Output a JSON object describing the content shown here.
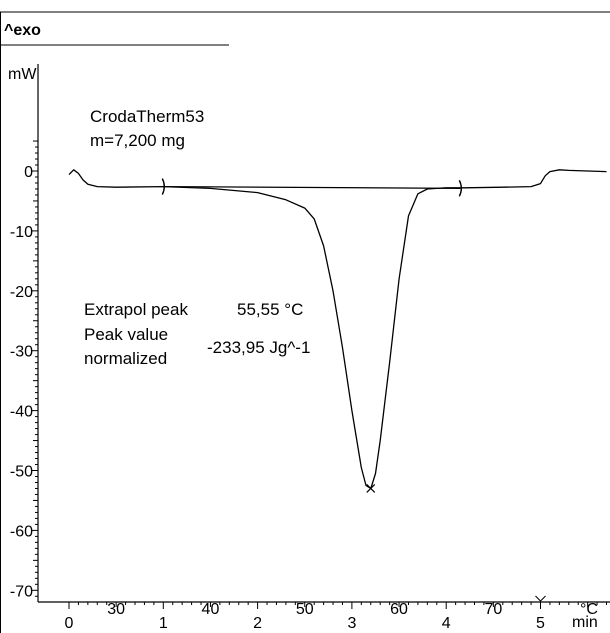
{
  "chart_data": {
    "type": "line",
    "header_label": "^exo",
    "ylabel": "mW",
    "xlabel": "min",
    "temperature_unit": "°C",
    "sample_name": "CrodaTherm53",
    "sample_mass": "m=7,200 mg",
    "xlim": [
      -0.05,
      5.7
    ],
    "ylim": [
      -71.5,
      8.5
    ],
    "x_ticks": [
      0,
      1,
      2,
      3,
      4,
      5
    ],
    "y_ticks": [
      0,
      -10,
      -20,
      -30,
      -40,
      -50,
      -60,
      -70
    ],
    "temperature_ticks": [
      {
        "label": "30",
        "x": 0.5
      },
      {
        "label": "40",
        "x": 1.5
      },
      {
        "label": "50",
        "x": 2.5
      },
      {
        "label": "60",
        "x": 3.5
      },
      {
        "label": "70",
        "x": 4.5
      }
    ],
    "series": [
      {
        "x": [
          0.0,
          0.05,
          0.1,
          0.15,
          0.2,
          0.3,
          0.5,
          1.0,
          1.5,
          2.0,
          2.3,
          2.5,
          2.6,
          2.7,
          2.8,
          2.9,
          3.0,
          3.1,
          3.15,
          3.2,
          3.25,
          3.3,
          3.4,
          3.5,
          3.6,
          3.7,
          3.8,
          3.9,
          4.0,
          4.2,
          4.6,
          4.9,
          5.0,
          5.05,
          5.1,
          5.2,
          5.3,
          5.5,
          5.7
        ],
        "y": [
          -0.6,
          0.2,
          -0.4,
          -1.5,
          -2.2,
          -2.6,
          -2.7,
          -2.6,
          -2.9,
          -3.6,
          -4.8,
          -6.2,
          -8.0,
          -12.5,
          -20.0,
          -29.5,
          -40.0,
          -49.5,
          -52.5,
          -53.0,
          -50.5,
          -45.0,
          -32.0,
          -18.0,
          -7.5,
          -3.8,
          -3.0,
          -2.9,
          -2.8,
          -2.8,
          -2.7,
          -2.6,
          -2.1,
          -0.8,
          -0.1,
          0.2,
          0.1,
          0.0,
          -0.1
        ]
      }
    ],
    "baseline": {
      "x": [
        1.0,
        4.15
      ],
      "y": [
        -2.6,
        -2.9
      ]
    },
    "integration_limits": [
      {
        "x": 1.0,
        "y": -2.6
      },
      {
        "x": 4.15,
        "y": -2.9
      }
    ],
    "peak_marker": {
      "x": 3.2,
      "y": -53.0
    },
    "annotations": {
      "extrapol_peak_label": "Extrapol peak",
      "extrapol_peak_value": "55,55 °C",
      "peak_value_label_1": "Peak value",
      "peak_value_label_2": "normalized",
      "peak_value": "-233,95 Jg^-1"
    }
  }
}
